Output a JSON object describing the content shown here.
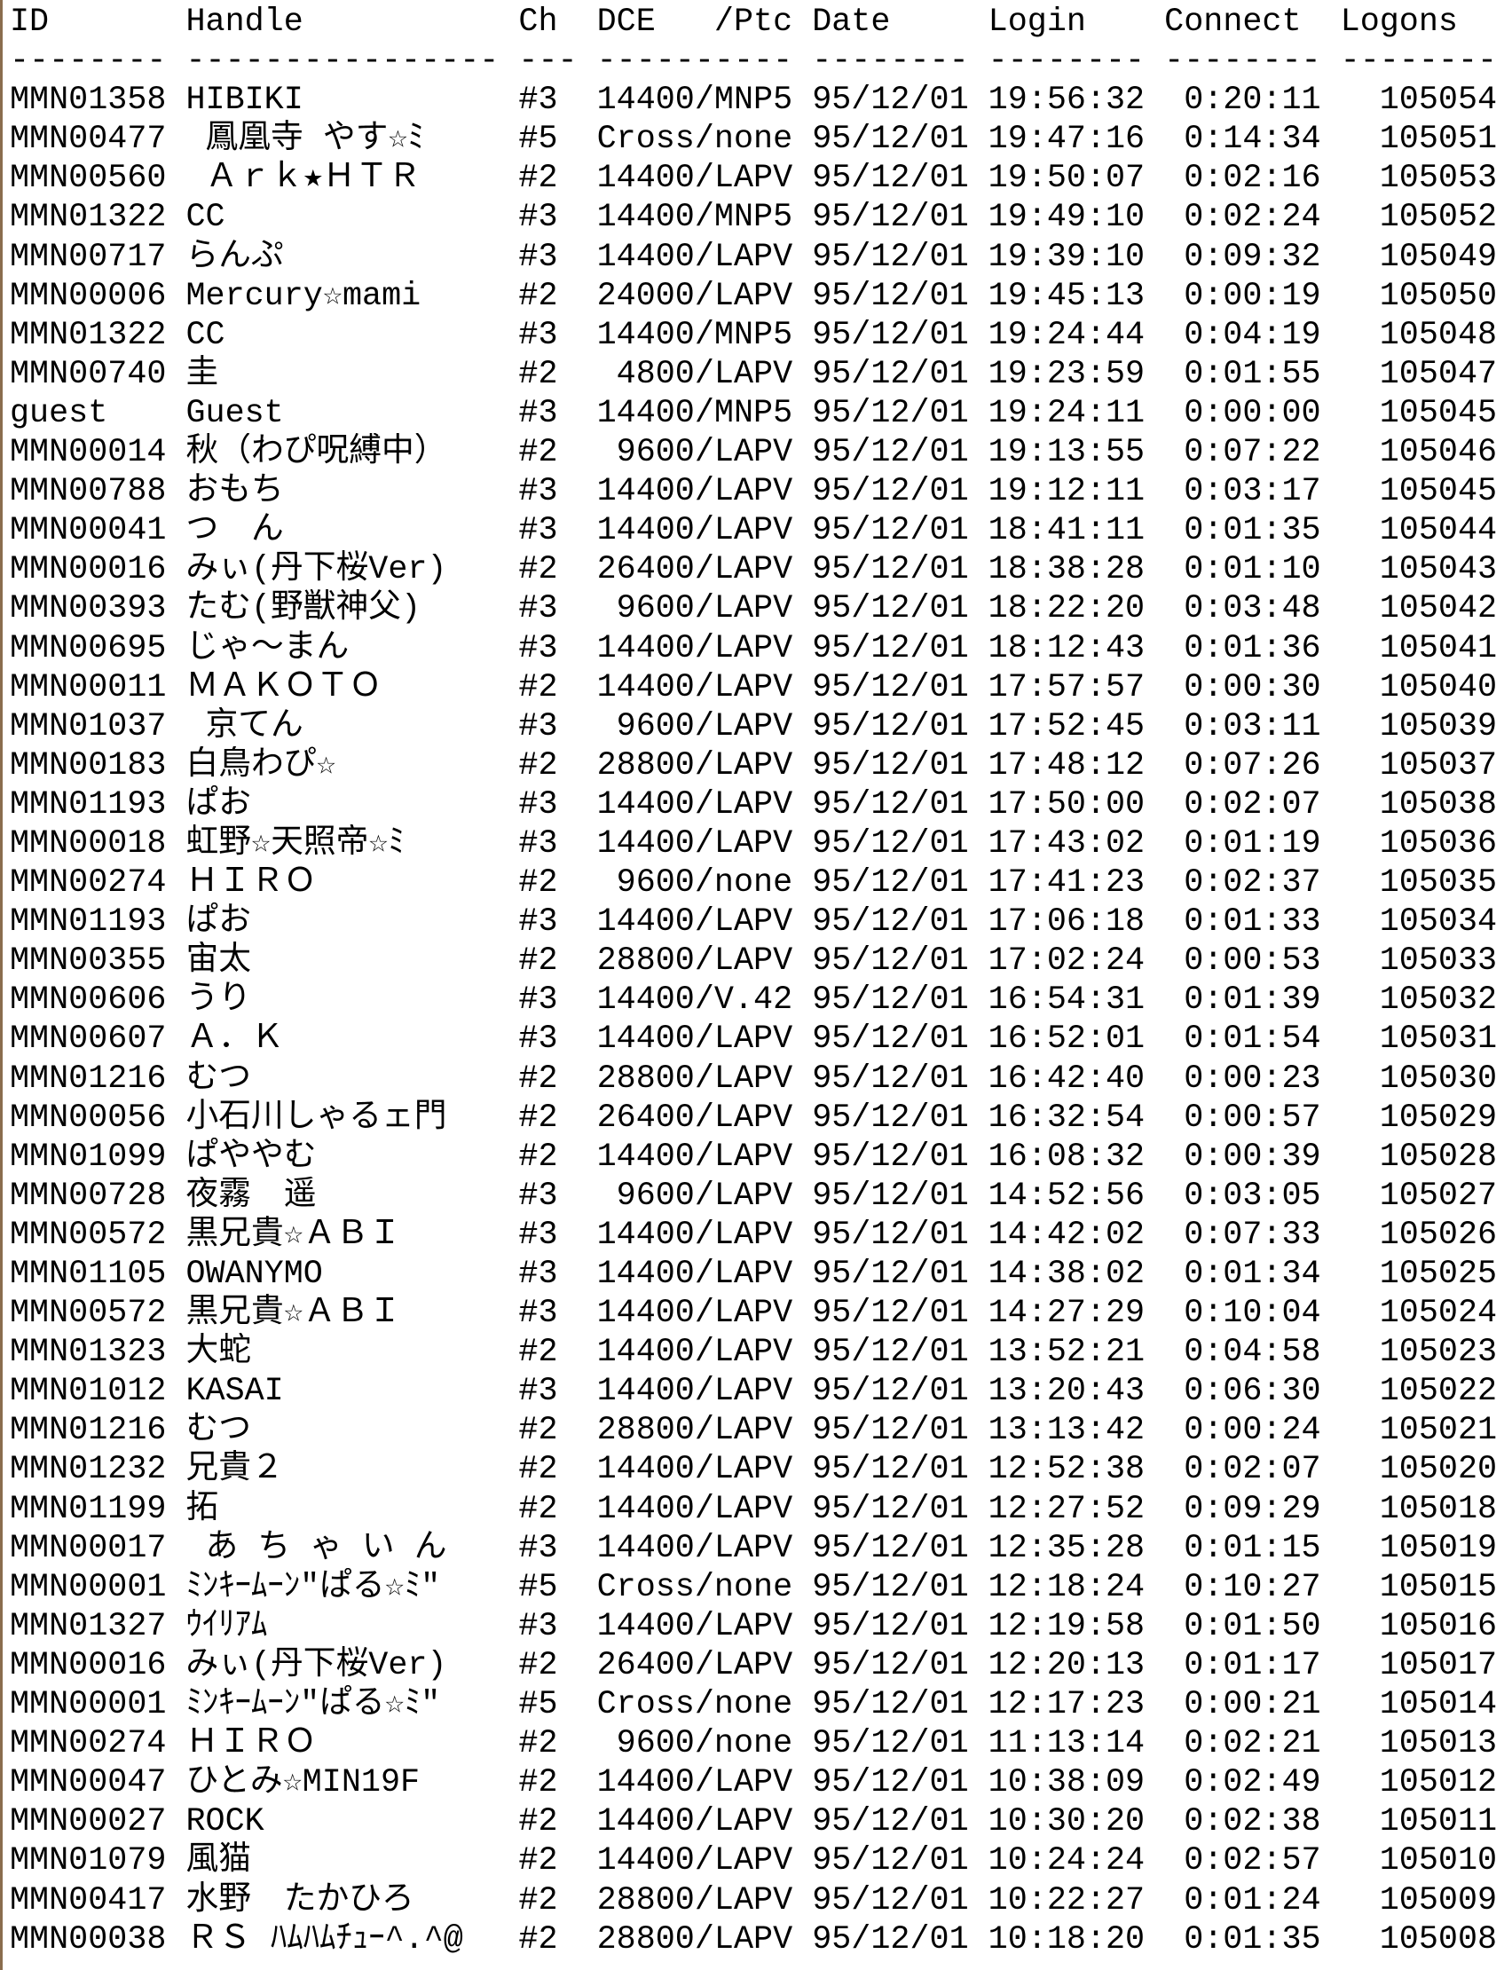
{
  "header": {
    "id": "ID",
    "handle": "Handle",
    "ch": "Ch",
    "dce": "DCE   /Ptcl",
    "date": "Date",
    "login": "Login",
    "connect": "Connect",
    "logons": "Logons"
  },
  "separator": {
    "id": "--------",
    "handle": "----------------",
    "ch": "---",
    "dce": "----------",
    "date": "--------",
    "login": "--------",
    "connect": "--------",
    "logons": "--------"
  },
  "rows": [
    {
      "id": "MMN01358",
      "handle": "HIBIKI",
      "ch": "#3",
      "dce": "14400/MNP5",
      "date": "95/12/01",
      "login": "19:56:32",
      "connect": "0:20:11",
      "logons": "105054"
    },
    {
      "id": "MMN00477",
      "handle": " 鳳凰寺 やす☆ﾐ",
      "ch": "#5",
      "dce": "Cross/none",
      "date": "95/12/01",
      "login": "19:47:16",
      "connect": "0:14:34",
      "logons": "105051"
    },
    {
      "id": "MMN00560",
      "handle": " Ａｒｋ★ＨＴＲ",
      "ch": "#2",
      "dce": "14400/LAPV",
      "date": "95/12/01",
      "login": "19:50:07",
      "connect": "0:02:16",
      "logons": "105053"
    },
    {
      "id": "MMN01322",
      "handle": "CC",
      "ch": "#3",
      "dce": "14400/MNP5",
      "date": "95/12/01",
      "login": "19:49:10",
      "connect": "0:02:24",
      "logons": "105052"
    },
    {
      "id": "MMN00717",
      "handle": "らんぷ",
      "ch": "#3",
      "dce": "14400/LAPV",
      "date": "95/12/01",
      "login": "19:39:10",
      "connect": "0:09:32",
      "logons": "105049"
    },
    {
      "id": "MMN00006",
      "handle": "Mercury☆mami",
      "ch": "#2",
      "dce": "24000/LAPV",
      "date": "95/12/01",
      "login": "19:45:13",
      "connect": "0:00:19",
      "logons": "105050"
    },
    {
      "id": "MMN01322",
      "handle": "CC",
      "ch": "#3",
      "dce": "14400/MNP5",
      "date": "95/12/01",
      "login": "19:24:44",
      "connect": "0:04:19",
      "logons": "105048"
    },
    {
      "id": "MMN00740",
      "handle": "圭",
      "ch": "#2",
      "dce": "4800/LAPV",
      "date": "95/12/01",
      "login": "19:23:59",
      "connect": "0:01:55",
      "logons": "105047"
    },
    {
      "id": "guest",
      "handle": "Guest",
      "ch": "#3",
      "dce": "14400/MNP5",
      "date": "95/12/01",
      "login": "19:24:11",
      "connect": "0:00:00",
      "logons": "105045"
    },
    {
      "id": "MMN00014",
      "handle": "秋（わぴ呪縛中）",
      "ch": "#2",
      "dce": "9600/LAPV",
      "date": "95/12/01",
      "login": "19:13:55",
      "connect": "0:07:22",
      "logons": "105046"
    },
    {
      "id": "MMN00788",
      "handle": "おもち",
      "ch": "#3",
      "dce": "14400/LAPV",
      "date": "95/12/01",
      "login": "19:12:11",
      "connect": "0:03:17",
      "logons": "105045"
    },
    {
      "id": "MMN00041",
      "handle": "つ　ん",
      "ch": "#3",
      "dce": "14400/LAPV",
      "date": "95/12/01",
      "login": "18:41:11",
      "connect": "0:01:35",
      "logons": "105044"
    },
    {
      "id": "MMN00016",
      "handle": "みぃ(丹下桜Ver)",
      "ch": "#2",
      "dce": "26400/LAPV",
      "date": "95/12/01",
      "login": "18:38:28",
      "connect": "0:01:10",
      "logons": "105043"
    },
    {
      "id": "MMN00393",
      "handle": "たむ(野獣神父)",
      "ch": "#3",
      "dce": "9600/LAPV",
      "date": "95/12/01",
      "login": "18:22:20",
      "connect": "0:03:48",
      "logons": "105042"
    },
    {
      "id": "MMN00695",
      "handle": "じゃ～まん",
      "ch": "#3",
      "dce": "14400/LAPV",
      "date": "95/12/01",
      "login": "18:12:43",
      "connect": "0:01:36",
      "logons": "105041"
    },
    {
      "id": "MMN00011",
      "handle": "ＭＡＫＯＴＯ",
      "ch": "#2",
      "dce": "14400/LAPV",
      "date": "95/12/01",
      "login": "17:57:57",
      "connect": "0:00:30",
      "logons": "105040"
    },
    {
      "id": "MMN01037",
      "handle": " 京てん",
      "ch": "#3",
      "dce": "9600/LAPV",
      "date": "95/12/01",
      "login": "17:52:45",
      "connect": "0:03:11",
      "logons": "105039"
    },
    {
      "id": "MMN00183",
      "handle": "白鳥わぴ☆",
      "ch": "#2",
      "dce": "28800/LAPV",
      "date": "95/12/01",
      "login": "17:48:12",
      "connect": "0:07:26",
      "logons": "105037"
    },
    {
      "id": "MMN01193",
      "handle": "ぱお",
      "ch": "#3",
      "dce": "14400/LAPV",
      "date": "95/12/01",
      "login": "17:50:00",
      "connect": "0:02:07",
      "logons": "105038"
    },
    {
      "id": "MMN00018",
      "handle": "虹野☆天照帝☆ﾐ",
      "ch": "#3",
      "dce": "14400/LAPV",
      "date": "95/12/01",
      "login": "17:43:02",
      "connect": "0:01:19",
      "logons": "105036"
    },
    {
      "id": "MMN00274",
      "handle": "ＨＩＲＯ",
      "ch": "#2",
      "dce": "9600/none",
      "date": "95/12/01",
      "login": "17:41:23",
      "connect": "0:02:37",
      "logons": "105035"
    },
    {
      "id": "MMN01193",
      "handle": "ぱお",
      "ch": "#3",
      "dce": "14400/LAPV",
      "date": "95/12/01",
      "login": "17:06:18",
      "connect": "0:01:33",
      "logons": "105034"
    },
    {
      "id": "MMN00355",
      "handle": "宙太",
      "ch": "#2",
      "dce": "28800/LAPV",
      "date": "95/12/01",
      "login": "17:02:24",
      "connect": "0:00:53",
      "logons": "105033"
    },
    {
      "id": "MMN00606",
      "handle": "うり",
      "ch": "#3",
      "dce": "14400/V.42",
      "date": "95/12/01",
      "login": "16:54:31",
      "connect": "0:01:39",
      "logons": "105032"
    },
    {
      "id": "MMN00607",
      "handle": "Ａ．Ｋ",
      "ch": "#3",
      "dce": "14400/LAPV",
      "date": "95/12/01",
      "login": "16:52:01",
      "connect": "0:01:54",
      "logons": "105031"
    },
    {
      "id": "MMN01216",
      "handle": "むつ",
      "ch": "#2",
      "dce": "28800/LAPV",
      "date": "95/12/01",
      "login": "16:42:40",
      "connect": "0:00:23",
      "logons": "105030"
    },
    {
      "id": "MMN00056",
      "handle": "小石川しゃるェ門",
      "ch": "#2",
      "dce": "26400/LAPV",
      "date": "95/12/01",
      "login": "16:32:54",
      "connect": "0:00:57",
      "logons": "105029"
    },
    {
      "id": "MMN01099",
      "handle": "ぱややむ",
      "ch": "#2",
      "dce": "14400/LAPV",
      "date": "95/12/01",
      "login": "16:08:32",
      "connect": "0:00:39",
      "logons": "105028"
    },
    {
      "id": "MMN00728",
      "handle": "夜霧　遥",
      "ch": "#3",
      "dce": "9600/LAPV",
      "date": "95/12/01",
      "login": "14:52:56",
      "connect": "0:03:05",
      "logons": "105027"
    },
    {
      "id": "MMN00572",
      "handle": "黒兄貴☆ＡＢＩ",
      "ch": "#3",
      "dce": "14400/LAPV",
      "date": "95/12/01",
      "login": "14:42:02",
      "connect": "0:07:33",
      "logons": "105026"
    },
    {
      "id": "MMN01105",
      "handle": "OWANYMO",
      "ch": "#3",
      "dce": "14400/LAPV",
      "date": "95/12/01",
      "login": "14:38:02",
      "connect": "0:01:34",
      "logons": "105025"
    },
    {
      "id": "MMN00572",
      "handle": "黒兄貴☆ＡＢＩ",
      "ch": "#3",
      "dce": "14400/LAPV",
      "date": "95/12/01",
      "login": "14:27:29",
      "connect": "0:10:04",
      "logons": "105024"
    },
    {
      "id": "MMN01323",
      "handle": "大蛇",
      "ch": "#2",
      "dce": "14400/LAPV",
      "date": "95/12/01",
      "login": "13:52:21",
      "connect": "0:04:58",
      "logons": "105023"
    },
    {
      "id": "MMN01012",
      "handle": "KASAI",
      "ch": "#3",
      "dce": "14400/LAPV",
      "date": "95/12/01",
      "login": "13:20:43",
      "connect": "0:06:30",
      "logons": "105022"
    },
    {
      "id": "MMN01216",
      "handle": "むつ",
      "ch": "#2",
      "dce": "28800/LAPV",
      "date": "95/12/01",
      "login": "13:13:42",
      "connect": "0:00:24",
      "logons": "105021"
    },
    {
      "id": "MMN01232",
      "handle": "兄貴２",
      "ch": "#2",
      "dce": "14400/LAPV",
      "date": "95/12/01",
      "login": "12:52:38",
      "connect": "0:02:07",
      "logons": "105020"
    },
    {
      "id": "MMN01199",
      "handle": "拓",
      "ch": "#2",
      "dce": "14400/LAPV",
      "date": "95/12/01",
      "login": "12:27:52",
      "connect": "0:09:29",
      "logons": "105018"
    },
    {
      "id": "MMN00017",
      "handle": " あ ち ゃ い ん",
      "ch": "#3",
      "dce": "14400/LAPV",
      "date": "95/12/01",
      "login": "12:35:28",
      "connect": "0:01:15",
      "logons": "105019"
    },
    {
      "id": "MMN00001",
      "handle": "ﾐﾝｷｰﾑｰﾝ\"ぱる☆ﾐ\"",
      "ch": "#5",
      "dce": "Cross/none",
      "date": "95/12/01",
      "login": "12:18:24",
      "connect": "0:10:27",
      "logons": "105015"
    },
    {
      "id": "MMN01327",
      "handle": "ｳｲﾘｱﾑ",
      "ch": "#3",
      "dce": "14400/LAPV",
      "date": "95/12/01",
      "login": "12:19:58",
      "connect": "0:01:50",
      "logons": "105016"
    },
    {
      "id": "MMN00016",
      "handle": "みぃ(丹下桜Ver)",
      "ch": "#2",
      "dce": "26400/LAPV",
      "date": "95/12/01",
      "login": "12:20:13",
      "connect": "0:01:17",
      "logons": "105017"
    },
    {
      "id": "MMN00001",
      "handle": "ﾐﾝｷｰﾑｰﾝ\"ぱる☆ﾐ\"",
      "ch": "#5",
      "dce": "Cross/none",
      "date": "95/12/01",
      "login": "12:17:23",
      "connect": "0:00:21",
      "logons": "105014"
    },
    {
      "id": "MMN00274",
      "handle": "ＨＩＲＯ",
      "ch": "#2",
      "dce": "9600/none",
      "date": "95/12/01",
      "login": "11:13:14",
      "connect": "0:02:21",
      "logons": "105013"
    },
    {
      "id": "MMN00047",
      "handle": "ひとみ☆MIN19F",
      "ch": "#2",
      "dce": "14400/LAPV",
      "date": "95/12/01",
      "login": "10:38:09",
      "connect": "0:02:49",
      "logons": "105012"
    },
    {
      "id": "MMN00027",
      "handle": "ROCK",
      "ch": "#2",
      "dce": "14400/LAPV",
      "date": "95/12/01",
      "login": "10:30:20",
      "connect": "0:02:38",
      "logons": "105011"
    },
    {
      "id": "MMN01079",
      "handle": "風猫",
      "ch": "#2",
      "dce": "14400/LAPV",
      "date": "95/12/01",
      "login": "10:24:24",
      "connect": "0:02:57",
      "logons": "105010"
    },
    {
      "id": "MMN00417",
      "handle": "水野　たかひろ",
      "ch": "#2",
      "dce": "28800/LAPV",
      "date": "95/12/01",
      "login": "10:22:27",
      "connect": "0:01:24",
      "logons": "105009"
    },
    {
      "id": "MMN00038",
      "handle": "ＲＳ ﾊﾑﾊﾑﾁｭｰ^.^@",
      "ch": "#2",
      "dce": "28800/LAPV",
      "date": "95/12/01",
      "login": "10:18:20",
      "connect": "0:01:35",
      "logons": "105008"
    }
  ]
}
